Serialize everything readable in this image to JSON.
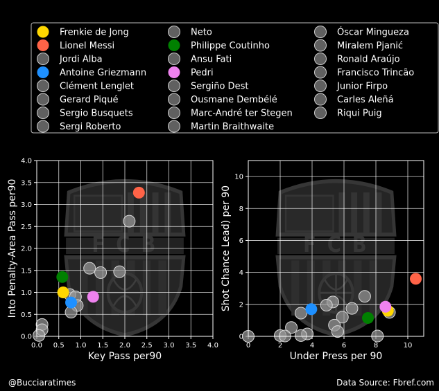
{
  "legend": {
    "placement": "top",
    "columns": 3,
    "entries": [
      {
        "name": "Frenkie de Jong",
        "color": "#FFD700",
        "highlight": true
      },
      {
        "name": "Lionel Messi",
        "color": "#FF6347",
        "highlight": true
      },
      {
        "name": "Jordi Alba",
        "color": "#808080",
        "highlight": false
      },
      {
        "name": "Antoine Griezmann",
        "color": "#1E90FF",
        "highlight": true
      },
      {
        "name": "Clément Lenglet",
        "color": "#808080",
        "highlight": false
      },
      {
        "name": "Gerard Piqué",
        "color": "#808080",
        "highlight": false
      },
      {
        "name": "Sergio Busquets",
        "color": "#808080",
        "highlight": false
      },
      {
        "name": "Sergi Roberto",
        "color": "#808080",
        "highlight": false
      },
      {
        "name": "Neto",
        "color": "#808080",
        "highlight": false
      },
      {
        "name": "Philippe Coutinho",
        "color": "#008000",
        "highlight": true
      },
      {
        "name": "Ansu Fati",
        "color": "#808080",
        "highlight": false
      },
      {
        "name": "Pedri",
        "color": "#EE82EE",
        "highlight": true
      },
      {
        "name": "Sergiño Dest",
        "color": "#808080",
        "highlight": false
      },
      {
        "name": "Ousmane Dembélé",
        "color": "#808080",
        "highlight": false
      },
      {
        "name": "Marc-André ter Stegen",
        "color": "#808080",
        "highlight": false
      },
      {
        "name": "Martin Braithwaite",
        "color": "#808080",
        "highlight": false
      },
      {
        "name": "Óscar Mingueza",
        "color": "#808080",
        "highlight": false
      },
      {
        "name": "Miralem Pjanić",
        "color": "#808080",
        "highlight": false
      },
      {
        "name": "Ronald Araújo",
        "color": "#808080",
        "highlight": false
      },
      {
        "name": "Francisco Trincão",
        "color": "#808080",
        "highlight": false
      },
      {
        "name": "Junior Firpo",
        "color": "#808080",
        "highlight": false
      },
      {
        "name": "Carles Aleñá",
        "color": "#808080",
        "highlight": false
      },
      {
        "name": "Riqui Puig",
        "color": "#808080",
        "highlight": false
      }
    ]
  },
  "watermark_text": "F C B",
  "chart_data": [
    {
      "type": "scatter",
      "xlabel": "Key Pass per90",
      "ylabel": "Into Penalty-Area Pass per90",
      "xlim": [
        0,
        4
      ],
      "ylim": [
        0,
        4
      ],
      "xticks": [
        "0.0",
        "0.5",
        "1.0",
        "1.5",
        "2.0",
        "2.5",
        "3.0",
        "3.5",
        "4.0"
      ],
      "yticks": [
        "0.0",
        "0.5",
        "1.0",
        "1.5",
        "2.0",
        "2.5",
        "3.0",
        "3.5",
        "4.0"
      ],
      "grid": true,
      "points": [
        {
          "player": "Jordi Alba",
          "x": 2.1,
          "y": 2.62
        },
        {
          "player": "Sergio Busquets",
          "x": 1.2,
          "y": 1.55
        },
        {
          "player": "Sergi Roberto",
          "x": 1.45,
          "y": 1.45
        },
        {
          "player": "Ansu Fati",
          "x": 1.88,
          "y": 1.47
        },
        {
          "player": "Ousmane Dembélé",
          "x": 0.75,
          "y": 0.95
        },
        {
          "player": "Miralem Pjanić",
          "x": 0.88,
          "y": 0.9
        },
        {
          "player": "Francisco Trincão",
          "x": 0.92,
          "y": 0.7
        },
        {
          "player": "Sergiño Dest",
          "x": 0.78,
          "y": 0.55
        },
        {
          "player": "Junior Firpo",
          "x": 0.12,
          "y": 0.27
        },
        {
          "player": "Clément Lenglet",
          "x": 0.12,
          "y": 0.15
        },
        {
          "player": "Marc-André ter Stegen",
          "x": 0.05,
          "y": 0.02
        },
        {
          "player": "Lionel Messi",
          "x": 2.32,
          "y": 3.27
        },
        {
          "player": "Philippe Coutinho",
          "x": 0.58,
          "y": 1.35
        },
        {
          "player": "Frenkie de Jong",
          "x": 0.6,
          "y": 1.0
        },
        {
          "player": "Pedri",
          "x": 1.28,
          "y": 0.9
        },
        {
          "player": "Antoine Griezmann",
          "x": 0.78,
          "y": 0.77
        }
      ]
    },
    {
      "type": "scatter",
      "xlabel": "Under Press per 90",
      "ylabel": "Shot Chance Lead) per 90",
      "xlim": [
        0,
        11
      ],
      "ylim": [
        0,
        11
      ],
      "xticks": [
        "0",
        "2",
        "4",
        "6",
        "8",
        "10"
      ],
      "yticks": [
        "0",
        "2",
        "4",
        "6",
        "8",
        "10"
      ],
      "grid": true,
      "points": [
        {
          "player": "Sergio Busquets",
          "x": 7.3,
          "y": 2.5
        },
        {
          "player": "Sergi Roberto",
          "x": 5.3,
          "y": 2.15
        },
        {
          "player": "Jordi Alba",
          "x": 4.9,
          "y": 1.95
        },
        {
          "player": "Ansu Fati",
          "x": 6.5,
          "y": 1.75
        },
        {
          "player": "Ousmane Dembélé",
          "x": 3.3,
          "y": 1.45
        },
        {
          "player": "Miralem Pjanić",
          "x": 5.9,
          "y": 1.2
        },
        {
          "player": "Francisco Trincão",
          "x": 5.4,
          "y": 0.7
        },
        {
          "player": "Martin Braithwaite",
          "x": 2.7,
          "y": 0.55
        },
        {
          "player": "Riqui Puig",
          "x": 5.6,
          "y": 0.3
        },
        {
          "player": "Clément Lenglet",
          "x": 3.7,
          "y": 0.15
        },
        {
          "player": "Gerard Piqué",
          "x": 2.0,
          "y": 0.05
        },
        {
          "player": "Óscar Mingueza",
          "x": 3.3,
          "y": 0.05
        },
        {
          "player": "Junior Firpo",
          "x": 2.3,
          "y": 0.02
        },
        {
          "player": "Ronald Araújo",
          "x": 8.1,
          "y": 0.02
        },
        {
          "player": "Marc-André ter Stegen",
          "x": 0.0,
          "y": 0.0
        },
        {
          "player": "Neto",
          "x": 8.85,
          "y": 1.5
        },
        {
          "player": "Lionel Messi",
          "x": 10.5,
          "y": 3.6
        },
        {
          "player": "Frenkie de Jong",
          "x": 8.75,
          "y": 1.6
        },
        {
          "player": "Pedri",
          "x": 8.6,
          "y": 1.85
        },
        {
          "player": "Antoine Griezmann",
          "x": 3.95,
          "y": 1.7
        },
        {
          "player": "Philippe Coutinho",
          "x": 7.5,
          "y": 1.15
        }
      ]
    }
  ],
  "footer": {
    "credit": "@Bucciaratimes",
    "source": "Data Source: Fbref.com"
  }
}
